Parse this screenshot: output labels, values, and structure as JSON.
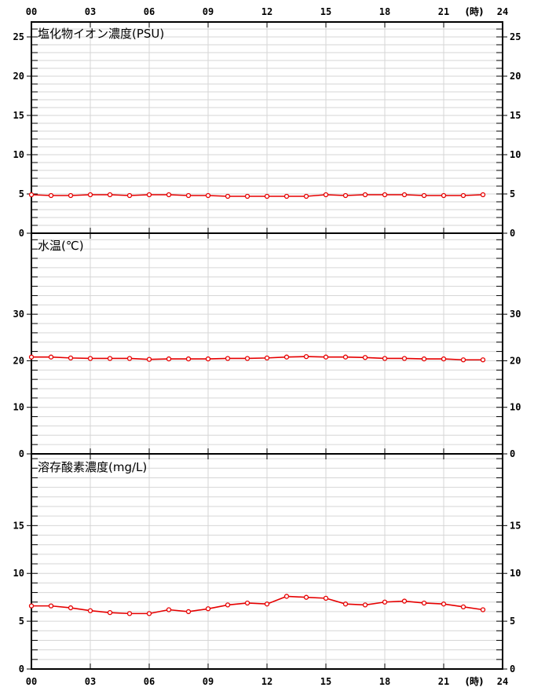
{
  "colors": {
    "series": "#e60000",
    "grid": "#d6d6d6",
    "axis": "#000000",
    "background": "#ffffff",
    "text": "#000000"
  },
  "time_axis": {
    "unit_label": "(時)",
    "hours": [
      0,
      3,
      6,
      9,
      12,
      15,
      18,
      21,
      24
    ],
    "labels": [
      "00",
      "03",
      "06",
      "09",
      "12",
      "15",
      "18",
      "21",
      "24"
    ],
    "hours_range": [
      0,
      24
    ]
  },
  "chart_data": [
    {
      "type": "line",
      "title": "塩化物イオン濃度(PSU)",
      "ylabel": "PSU",
      "ylim": [
        0,
        26.9
      ],
      "labeled_ticks": [
        0,
        5,
        10,
        15,
        20,
        25
      ],
      "minor_tick_step": 1,
      "x_hours": [
        0,
        1,
        2,
        3,
        4,
        5,
        6,
        7,
        8,
        9,
        10,
        11,
        12,
        13,
        14,
        15,
        16,
        17,
        18,
        19,
        20,
        21,
        22,
        23
      ],
      "values": [
        4.9,
        4.8,
        4.8,
        4.9,
        4.9,
        4.8,
        4.9,
        4.9,
        4.8,
        4.8,
        4.7,
        4.7,
        4.7,
        4.7,
        4.7,
        4.9,
        4.8,
        4.9,
        4.9,
        4.9,
        4.8,
        4.8,
        4.8,
        4.9
      ]
    },
    {
      "type": "line",
      "title": "水温(℃)",
      "ylabel": "℃",
      "ylim": [
        0,
        47.4
      ],
      "labeled_ticks": [
        0,
        10,
        20,
        30
      ],
      "minor_tick_step": 2,
      "x_hours": [
        0,
        1,
        2,
        3,
        4,
        5,
        6,
        7,
        8,
        9,
        10,
        11,
        12,
        13,
        14,
        15,
        16,
        17,
        18,
        19,
        20,
        21,
        22,
        23
      ],
      "values": [
        20.8,
        20.8,
        20.6,
        20.5,
        20.5,
        20.5,
        20.3,
        20.4,
        20.4,
        20.4,
        20.5,
        20.5,
        20.6,
        20.8,
        20.9,
        20.8,
        20.8,
        20.7,
        20.5,
        20.5,
        20.4,
        20.4,
        20.2,
        20.2
      ]
    },
    {
      "type": "line",
      "title": "溶存酸素濃度(mg/L)",
      "ylabel": "mg/L",
      "ylim": [
        0,
        22.5
      ],
      "labeled_ticks": [
        0,
        5,
        10,
        15
      ],
      "minor_tick_step": 1,
      "x_hours": [
        0,
        1,
        2,
        3,
        4,
        5,
        6,
        7,
        8,
        9,
        10,
        11,
        12,
        13,
        14,
        15,
        16,
        17,
        18,
        19,
        20,
        21,
        22,
        23
      ],
      "values": [
        6.6,
        6.6,
        6.4,
        6.1,
        5.9,
        5.8,
        5.8,
        6.2,
        6.0,
        6.3,
        6.7,
        6.9,
        6.8,
        7.6,
        7.5,
        7.4,
        6.8,
        6.7,
        7.0,
        7.1,
        6.9,
        6.8,
        6.5,
        6.2
      ]
    }
  ]
}
